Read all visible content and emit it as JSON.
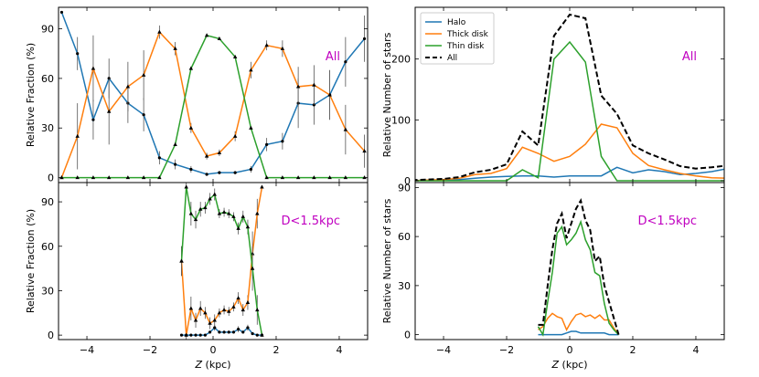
{
  "colors": {
    "halo": "#1f77b4",
    "thick": "#ff7f0e",
    "thin": "#2ca02c",
    "all": "#000000",
    "label": "#c000c0"
  },
  "xlabel_italic": "Z",
  "xlabel_unit": " (kpc)",
  "chart_data": [
    {
      "id": "tl",
      "type": "line",
      "panel_label": "All",
      "ylabel": "Relative Fraction  (%)",
      "xlim": [
        -4.9,
        4.9
      ],
      "ylim": [
        -3,
        103
      ],
      "xticks": [
        -4,
        -2,
        0,
        2,
        4
      ],
      "xtick_labels_shown": false,
      "yticks": [
        0,
        30,
        60,
        90
      ],
      "series": [
        {
          "key": "halo",
          "markers": "circle",
          "errors": true,
          "x": [
            -4.8,
            -4.3,
            -3.8,
            -3.3,
            -2.7,
            -2.2,
            -1.7,
            -1.2,
            -0.7,
            -0.2,
            0.2,
            0.7,
            1.2,
            1.7,
            2.2,
            2.7,
            3.2,
            3.7,
            4.2,
            4.8
          ],
          "y": [
            100,
            75,
            35,
            60,
            45,
            38,
            12,
            8,
            5,
            2,
            3,
            3,
            5,
            20,
            22,
            45,
            44,
            50,
            70,
            84
          ],
          "err": [
            0,
            10,
            12,
            12,
            12,
            10,
            4,
            3,
            2,
            1,
            1,
            1,
            2,
            4,
            5,
            15,
            12,
            15,
            15,
            14
          ]
        },
        {
          "key": "thick",
          "markers": "triangle",
          "errors": true,
          "x": [
            -4.8,
            -4.3,
            -3.8,
            -3.3,
            -2.7,
            -2.2,
            -1.7,
            -1.2,
            -0.7,
            -0.2,
            0.2,
            0.7,
            1.2,
            1.7,
            2.2,
            2.7,
            3.2,
            3.7,
            4.2,
            4.8
          ],
          "y": [
            0,
            25,
            66,
            40,
            55,
            62,
            88,
            78,
            30,
            13,
            15,
            25,
            65,
            80,
            78,
            55,
            56,
            50,
            29,
            16
          ],
          "err": [
            0,
            20,
            20,
            20,
            15,
            15,
            4,
            4,
            3,
            2,
            2,
            3,
            5,
            3,
            5,
            12,
            12,
            15,
            15,
            10
          ]
        },
        {
          "key": "thin",
          "markers": "triangle",
          "errors": false,
          "x": [
            -4.8,
            -4.3,
            -3.8,
            -3.3,
            -2.7,
            -2.2,
            -1.7,
            -1.2,
            -0.7,
            -0.2,
            0.2,
            0.7,
            1.2,
            1.7,
            2.2,
            2.7,
            3.2,
            3.7,
            4.2,
            4.8
          ],
          "y": [
            0,
            0,
            0,
            0,
            0,
            0,
            0,
            20,
            66,
            86,
            84,
            73,
            30,
            0,
            0,
            0,
            0,
            0,
            0,
            0
          ],
          "err": []
        }
      ]
    },
    {
      "id": "tr",
      "type": "line",
      "panel_label": "All",
      "ylabel": "Relative Number of stars",
      "xlim": [
        -4.9,
        4.9
      ],
      "ylim": [
        -3,
        285
      ],
      "xticks": [
        -4,
        -2,
        0,
        2,
        4
      ],
      "xtick_labels_shown": false,
      "yticks": [
        0,
        100,
        200
      ],
      "legend": [
        "Halo",
        "Thick disk",
        "Thin disk",
        "All"
      ],
      "legend_position": "upper-left",
      "series": [
        {
          "key": "halo",
          "x": [
            -5,
            -4.5,
            -4,
            -3.5,
            -3,
            -2.5,
            -2,
            -1.5,
            -1,
            -0.5,
            0,
            0.5,
            1,
            1.5,
            2,
            2.5,
            3,
            3.5,
            4,
            4.5,
            5
          ],
          "y": [
            0,
            1,
            1,
            2,
            4,
            6,
            7,
            8,
            8,
            6,
            8,
            8,
            8,
            22,
            13,
            18,
            15,
            10,
            12,
            15,
            20
          ]
        },
        {
          "key": "thick",
          "x": [
            -5,
            -4.5,
            -4,
            -3.5,
            -3,
            -2.5,
            -2,
            -1.5,
            -1,
            -0.5,
            0,
            0.5,
            1,
            1.5,
            2,
            2.5,
            3,
            3.5,
            4,
            4.5,
            5
          ],
          "y": [
            0,
            1,
            2,
            4,
            10,
            12,
            20,
            55,
            45,
            32,
            40,
            60,
            93,
            87,
            45,
            25,
            18,
            12,
            8,
            5,
            4
          ]
        },
        {
          "key": "thin",
          "x": [
            -5,
            -4.5,
            -4,
            -3.5,
            -3,
            -2.5,
            -2,
            -1.5,
            -1,
            -0.5,
            0,
            0.5,
            1,
            1.5,
            2,
            2.5,
            3,
            3.5,
            4,
            4.5,
            5
          ],
          "y": [
            0,
            0,
            0,
            0,
            0,
            0,
            0,
            18,
            5,
            200,
            228,
            195,
            40,
            0,
            0,
            0,
            0,
            0,
            0,
            0,
            0
          ]
        },
        {
          "key": "all",
          "dashed": true,
          "x": [
            -5,
            -4.5,
            -4,
            -3.5,
            -3,
            -2.5,
            -2,
            -1.5,
            -1,
            -0.5,
            0,
            0.5,
            1,
            1.5,
            2,
            2.5,
            3,
            3.5,
            4,
            4.5,
            5
          ],
          "y": [
            1,
            2,
            3,
            6,
            14,
            18,
            27,
            81,
            58,
            238,
            273,
            267,
            140,
            110,
            58,
            45,
            35,
            24,
            20,
            22,
            25
          ]
        }
      ]
    },
    {
      "id": "bl",
      "type": "line",
      "panel_label": "D<1.5kpc",
      "ylabel": "Relative Fraction  (%)",
      "xlim": [
        -4.9,
        4.9
      ],
      "ylim": [
        -3,
        103
      ],
      "xticks": [
        -4,
        -2,
        0,
        2,
        4
      ],
      "xtick_labels_shown": true,
      "yticks": [
        0,
        30,
        60,
        90
      ],
      "series": [
        {
          "key": "halo",
          "markers": "circle",
          "errors": true,
          "x": [
            -1.0,
            -0.85,
            -0.7,
            -0.55,
            -0.4,
            -0.25,
            -0.1,
            0.05,
            0.2,
            0.35,
            0.5,
            0.65,
            0.8,
            0.95,
            1.1,
            1.25,
            1.4,
            1.55
          ],
          "y": [
            0,
            0,
            0,
            0,
            0,
            0,
            2,
            5,
            2,
            2,
            2,
            2,
            4,
            2,
            5,
            1,
            0,
            0
          ],
          "err": [
            0,
            0,
            0,
            0,
            0,
            0,
            1,
            2,
            1,
            1,
            1,
            1,
            2,
            1,
            2,
            1,
            0,
            0
          ]
        },
        {
          "key": "thick",
          "markers": "triangle",
          "errors": true,
          "x": [
            -1.0,
            -0.85,
            -0.7,
            -0.55,
            -0.4,
            -0.25,
            -0.1,
            0.05,
            0.2,
            0.35,
            0.5,
            0.65,
            0.8,
            0.95,
            1.1,
            1.25,
            1.4,
            1.55
          ],
          "y": [
            50,
            0,
            18,
            10,
            18,
            15,
            8,
            10,
            15,
            17,
            16,
            19,
            25,
            17,
            22,
            55,
            82,
            100
          ],
          "err": [
            10,
            3,
            8,
            5,
            5,
            4,
            4,
            4,
            3,
            3,
            3,
            3,
            4,
            4,
            5,
            15,
            10,
            0
          ]
        },
        {
          "key": "thin",
          "markers": "triangle",
          "errors": true,
          "x": [
            -1.0,
            -0.85,
            -0.7,
            -0.55,
            -0.4,
            -0.25,
            -0.1,
            0.05,
            0.2,
            0.35,
            0.5,
            0.65,
            0.8,
            0.95,
            1.1,
            1.25,
            1.4,
            1.55
          ],
          "y": [
            50,
            100,
            82,
            78,
            85,
            86,
            92,
            95,
            82,
            83,
            82,
            80,
            72,
            80,
            73,
            45,
            17,
            0
          ],
          "err": [
            10,
            3,
            8,
            6,
            5,
            4,
            4,
            4,
            3,
            3,
            3,
            3,
            4,
            4,
            5,
            15,
            10,
            0
          ]
        }
      ]
    },
    {
      "id": "br",
      "type": "line",
      "panel_label": "D<1.5kpc",
      "ylabel": "Relative Number of stars",
      "xlim": [
        -4.9,
        4.9
      ],
      "ylim": [
        -3,
        93
      ],
      "xticks": [
        -4,
        -2,
        0,
        2,
        4
      ],
      "xtick_labels_shown": true,
      "yticks": [
        0,
        30,
        60,
        90
      ],
      "series": [
        {
          "key": "halo",
          "x": [
            -1.0,
            -0.85,
            -0.7,
            -0.55,
            -0.4,
            -0.25,
            -0.1,
            0.05,
            0.2,
            0.35,
            0.5,
            0.65,
            0.8,
            0.95,
            1.1,
            1.25,
            1.4,
            1.55
          ],
          "y": [
            0,
            0,
            0,
            0,
            0,
            0,
            1,
            2,
            2,
            1,
            1,
            1,
            1,
            1,
            1,
            0,
            0,
            0
          ]
        },
        {
          "key": "thick",
          "x": [
            -1.0,
            -0.85,
            -0.7,
            -0.55,
            -0.4,
            -0.25,
            -0.1,
            0.05,
            0.2,
            0.35,
            0.5,
            0.65,
            0.8,
            0.95,
            1.1,
            1.25,
            1.4,
            1.55
          ],
          "y": [
            3,
            5,
            10,
            13,
            11,
            10,
            3,
            8,
            12,
            13,
            11,
            12,
            10,
            12,
            9,
            9,
            4,
            0
          ]
        },
        {
          "key": "thin",
          "x": [
            -1.0,
            -0.85,
            -0.7,
            -0.55,
            -0.4,
            -0.25,
            -0.1,
            0.05,
            0.2,
            0.35,
            0.5,
            0.65,
            0.8,
            0.95,
            1.1,
            1.25,
            1.4,
            1.55
          ],
          "y": [
            5,
            0,
            20,
            38,
            62,
            66,
            55,
            58,
            62,
            69,
            58,
            52,
            38,
            36,
            19,
            7,
            3,
            0
          ]
        },
        {
          "key": "all",
          "dashed": true,
          "x": [
            -1.0,
            -0.85,
            -0.7,
            -0.55,
            -0.4,
            -0.25,
            -0.1,
            0.05,
            0.2,
            0.35,
            0.5,
            0.65,
            0.8,
            0.95,
            1.1,
            1.25,
            1.4,
            1.55
          ],
          "y": [
            6,
            6,
            30,
            52,
            68,
            74,
            59,
            68,
            77,
            82,
            70,
            64,
            45,
            48,
            30,
            20,
            10,
            0
          ]
        }
      ]
    }
  ]
}
